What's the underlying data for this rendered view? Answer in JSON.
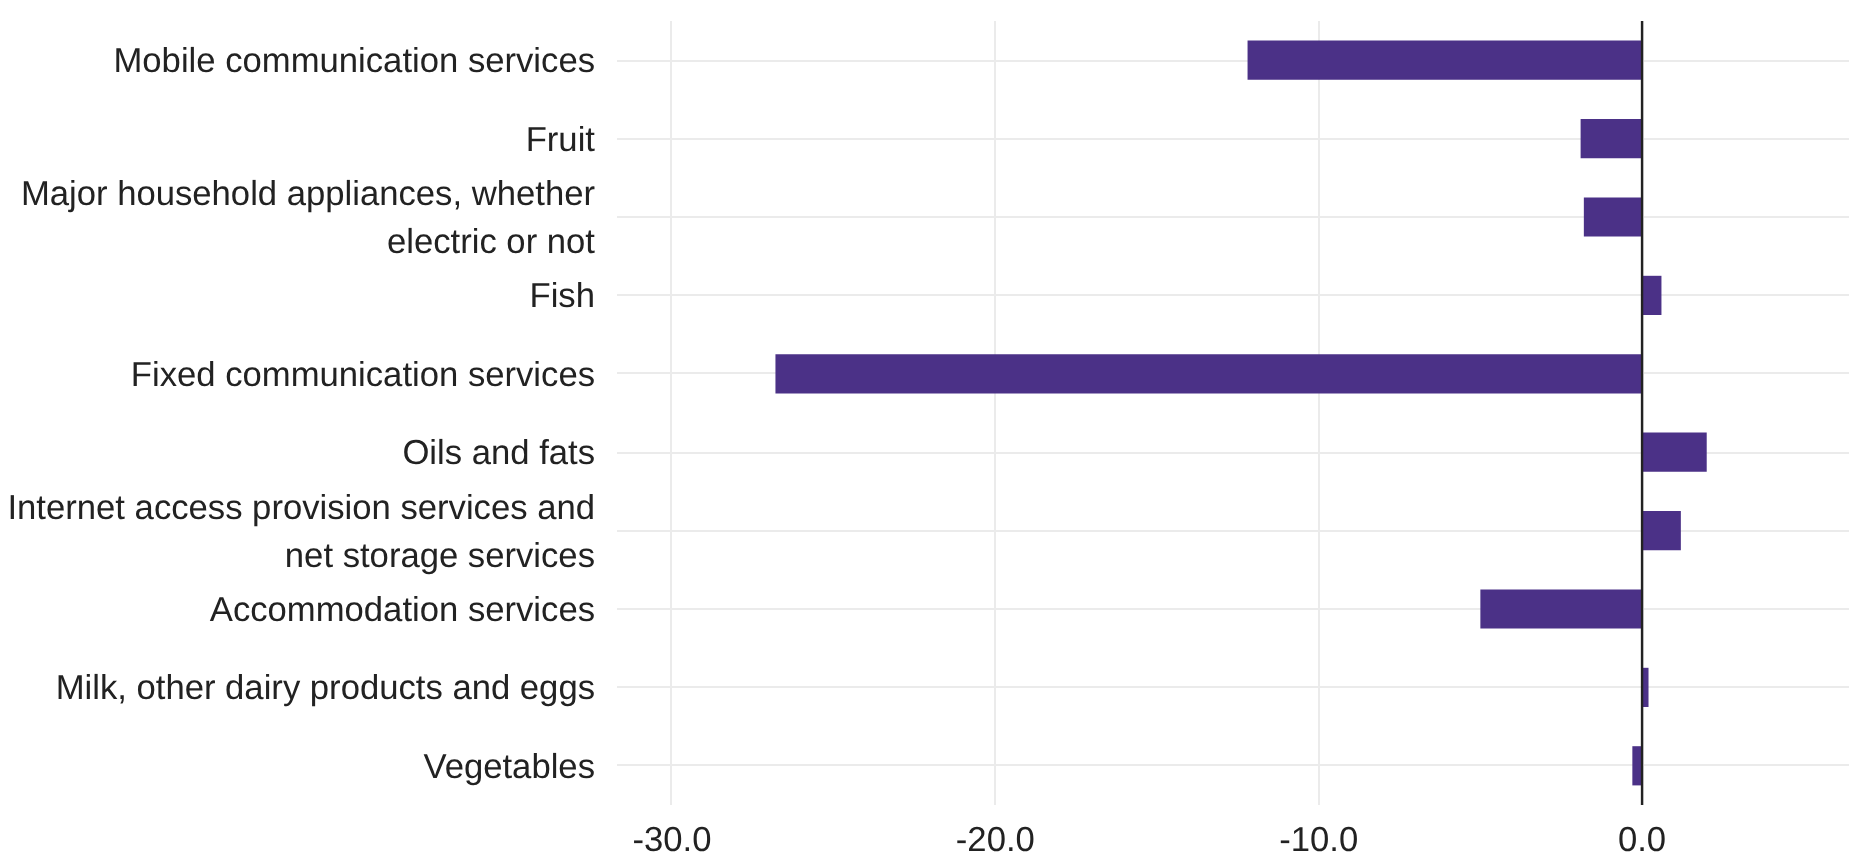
{
  "chart_data": {
    "type": "bar",
    "orientation": "horizontal",
    "categories": [
      "Mobile communication services",
      "Fruit",
      "Major household appliances, whether\nelectric or not",
      "Fish",
      "Fixed communication services",
      "Oils and fats",
      "Internet access provision services and\nnet storage services",
      "Accommodation services",
      "Milk, other dairy products and eggs",
      "Vegetables"
    ],
    "values": [
      -12.2,
      -1.9,
      -1.8,
      0.6,
      -26.8,
      2.0,
      1.2,
      -5.0,
      0.2,
      -0.3
    ],
    "color": "#4b3187",
    "xlim": [
      -31.7,
      6.4
    ],
    "xticks": [
      {
        "value": -30,
        "label": "-30.0"
      },
      {
        "value": -20,
        "label": "-20.0"
      },
      {
        "value": -10,
        "label": "-10.0"
      },
      {
        "value": 0,
        "label": "0.0"
      }
    ],
    "grid": true,
    "ref_lines": [
      {
        "axis": "x",
        "value": 0,
        "color": "#222222"
      }
    ]
  }
}
